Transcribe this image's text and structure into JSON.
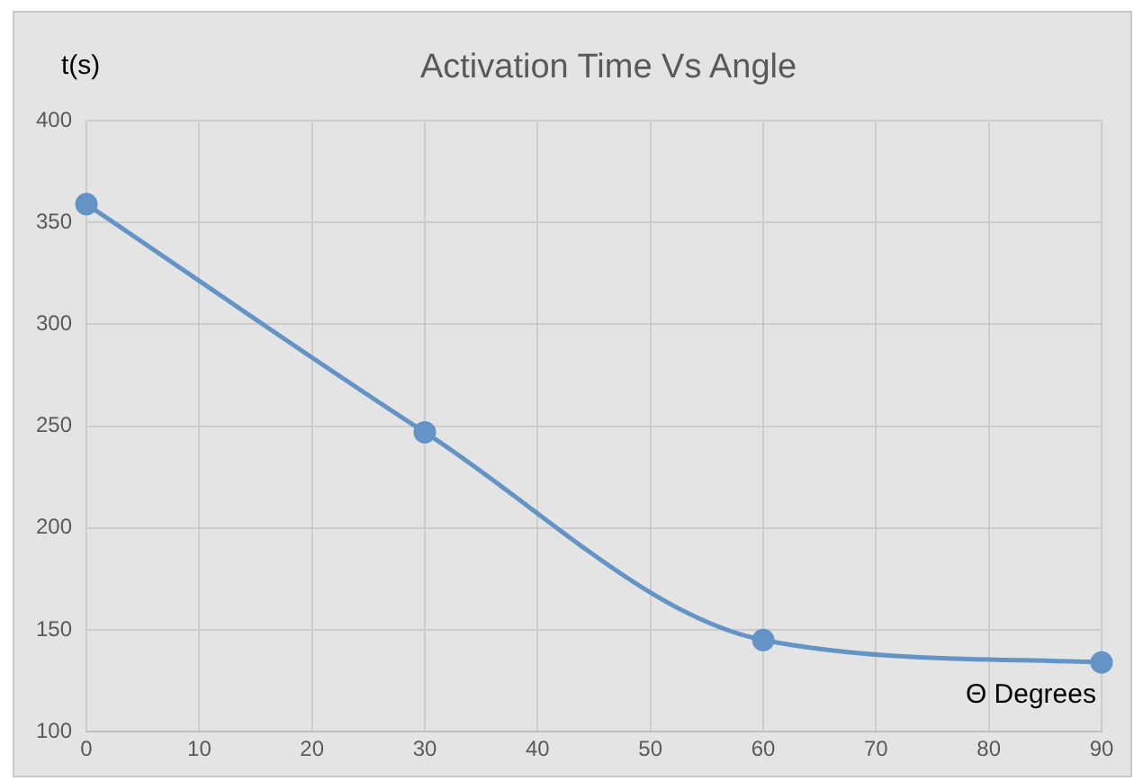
{
  "chart_data": {
    "type": "line",
    "title": "Activation Time Vs Angle",
    "xlabel": "Θ Degrees",
    "ylabel": "t(s)",
    "x": [
      0,
      30,
      60,
      90
    ],
    "series": [
      {
        "color": "#6494c6",
        "values": [
          359,
          247,
          145,
          134
        ]
      }
    ],
    "xlim": [
      0,
      90
    ],
    "xticks": [
      0,
      10,
      20,
      30,
      40,
      50,
      60,
      70,
      80,
      90
    ],
    "ylim": [
      100,
      400
    ],
    "yticks": [
      100,
      150,
      200,
      250,
      300,
      350,
      400
    ],
    "grid": true,
    "legend": false,
    "marker": "circle",
    "line_style": "solid"
  }
}
